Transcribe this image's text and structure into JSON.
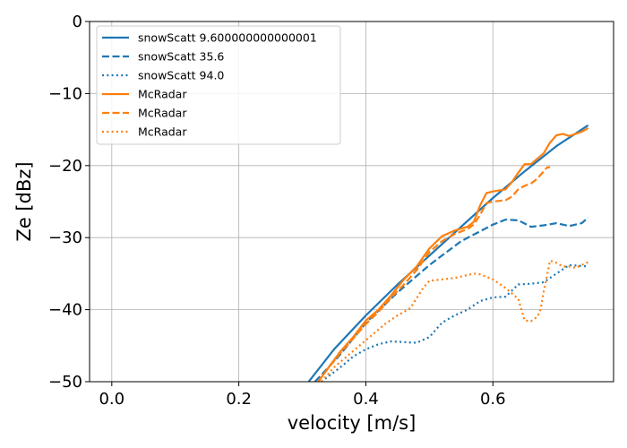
{
  "chart_data": {
    "type": "line",
    "title": "",
    "xlabel": "velocity [m/s]",
    "ylabel": "Ze [dBz]",
    "xlim": [
      -0.035,
      0.79
    ],
    "ylim": [
      -50,
      0
    ],
    "xticks": [
      0.0,
      0.2,
      0.4,
      0.6
    ],
    "xtick_labels": [
      "0.0",
      "0.2",
      "0.4",
      "0.6"
    ],
    "yticks": [
      0,
      -10,
      -20,
      -30,
      -40,
      -50
    ],
    "ytick_labels": [
      "0",
      "−10",
      "−20",
      "−30",
      "−40",
      "−50"
    ],
    "grid": true,
    "legend_position": "upper-left",
    "series": [
      {
        "name": "snowScatt 9.600000000000001",
        "color": "#1f77b4",
        "dash": "solid",
        "x": [
          0.31,
          0.35,
          0.4,
          0.45,
          0.5,
          0.55,
          0.6,
          0.65,
          0.7,
          0.75
        ],
        "y": [
          -50,
          -45.5,
          -40.8,
          -36.5,
          -32.5,
          -28.5,
          -24.5,
          -20.8,
          -17.3,
          -14.4
        ]
      },
      {
        "name": "snowScatt 35.6",
        "color": "#1f77b4",
        "dash": "dashed",
        "x": [
          0.32,
          0.36,
          0.4,
          0.45,
          0.5,
          0.55,
          0.6,
          0.62,
          0.64,
          0.66,
          0.68,
          0.7,
          0.72,
          0.74,
          0.75
        ],
        "y": [
          -50,
          -46.2,
          -41.8,
          -37.6,
          -33.8,
          -30.5,
          -28.2,
          -27.5,
          -27.6,
          -28.5,
          -28.3,
          -28,
          -28.4,
          -28,
          -27.2
        ]
      },
      {
        "name": "snowScatt 94.0",
        "color": "#1f77b4",
        "dash": "dotted",
        "x": [
          0.33,
          0.36,
          0.38,
          0.4,
          0.42,
          0.44,
          0.46,
          0.48,
          0.5,
          0.52,
          0.54,
          0.56,
          0.58,
          0.6,
          0.62,
          0.64,
          0.66,
          0.68,
          0.7,
          0.72,
          0.75
        ],
        "y": [
          -50,
          -48,
          -46.5,
          -45.5,
          -44.8,
          -44.4,
          -44.5,
          -44.6,
          -43.8,
          -41.8,
          -40.8,
          -40,
          -38.8,
          -38.3,
          -38.2,
          -36.5,
          -36.4,
          -36.2,
          -35,
          -33.8,
          -34
        ]
      },
      {
        "name": "McRadar",
        "color": "#ff7f0e",
        "dash": "solid",
        "x": [
          0.325,
          0.34,
          0.36,
          0.38,
          0.4,
          0.42,
          0.44,
          0.46,
          0.48,
          0.5,
          0.52,
          0.54,
          0.56,
          0.57,
          0.58,
          0.59,
          0.6,
          0.62,
          0.63,
          0.64,
          0.65,
          0.66,
          0.68,
          0.69,
          0.7,
          0.71,
          0.72,
          0.73,
          0.74,
          0.75
        ],
        "y": [
          -50,
          -48.2,
          -45.8,
          -43.8,
          -41.5,
          -40,
          -38,
          -35.8,
          -34,
          -31.5,
          -29.8,
          -29,
          -28.5,
          -27.8,
          -25.5,
          -23.8,
          -23.6,
          -23.3,
          -22.3,
          -21,
          -19.8,
          -19.8,
          -18.3,
          -16.8,
          -15.8,
          -15.6,
          -15.9,
          -15.6,
          -15.3,
          -14.8
        ]
      },
      {
        "name": "McRadar",
        "color": "#ff7f0e",
        "dash": "dashed",
        "x": [
          0.325,
          0.34,
          0.36,
          0.38,
          0.4,
          0.42,
          0.44,
          0.46,
          0.48,
          0.5,
          0.52,
          0.54,
          0.56,
          0.57,
          0.58,
          0.59,
          0.6,
          0.62,
          0.63,
          0.64,
          0.65,
          0.66,
          0.67,
          0.68,
          0.685,
          0.69
        ],
        "y": [
          -50,
          -48.2,
          -46,
          -44,
          -42,
          -40.3,
          -38.3,
          -36.5,
          -34.5,
          -32,
          -30.5,
          -29.5,
          -28.8,
          -28.2,
          -26.8,
          -25.2,
          -25,
          -24.8,
          -24.3,
          -23.3,
          -22.8,
          -22.5,
          -21.8,
          -20.8,
          -20.3,
          -20.2
        ]
      },
      {
        "name": "McRadar",
        "color": "#ff7f0e",
        "dash": "dotted",
        "x": [
          0.33,
          0.35,
          0.37,
          0.39,
          0.41,
          0.43,
          0.45,
          0.47,
          0.49,
          0.5,
          0.52,
          0.54,
          0.56,
          0.57,
          0.58,
          0.6,
          0.62,
          0.64,
          0.65,
          0.66,
          0.67,
          0.675,
          0.68,
          0.69,
          0.7,
          0.71,
          0.72,
          0.73,
          0.75
        ],
        "y": [
          -50,
          -48,
          -46.5,
          -45,
          -43.5,
          -42,
          -40.8,
          -39.8,
          -37,
          -36,
          -35.8,
          -35.6,
          -35.2,
          -35,
          -35.1,
          -35.8,
          -37,
          -38.5,
          -41.5,
          -41.6,
          -41,
          -40,
          -37.5,
          -33.2,
          -33.5,
          -34,
          -34,
          -34.2,
          -33.4
        ]
      }
    ]
  }
}
